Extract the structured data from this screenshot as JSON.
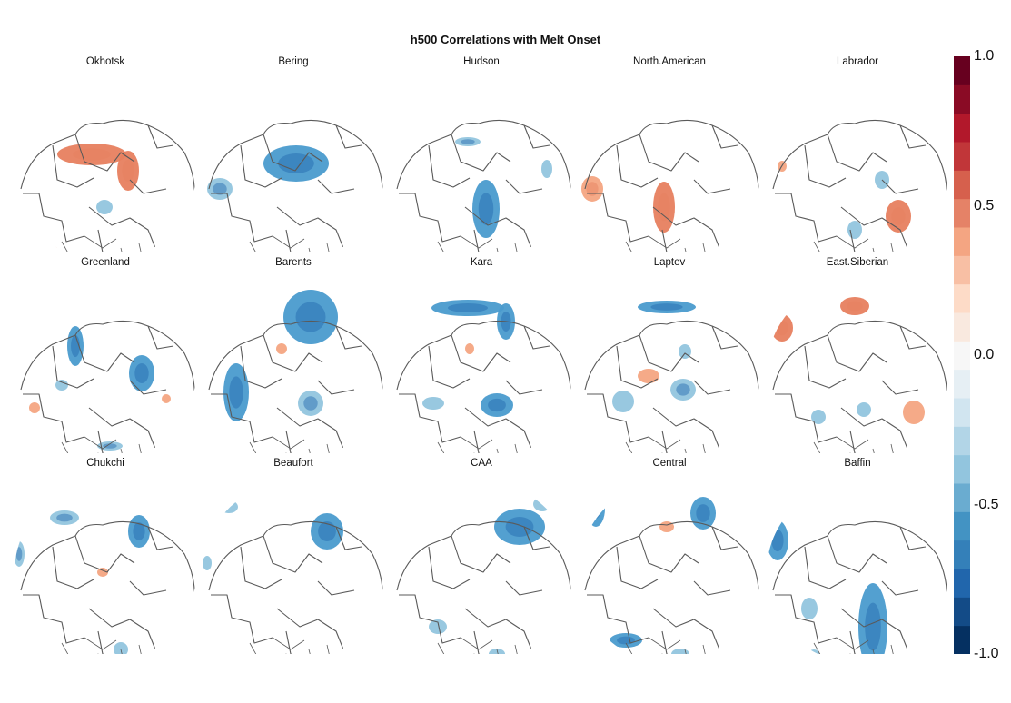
{
  "title": "h500 Correlations with Melt Onset",
  "colors": {
    "negative_strong": "#2166ac",
    "negative_mid": "#4a9bce",
    "negative_light": "#92c5de",
    "positive_light": "#f4a582",
    "positive_mid": "#e7805f",
    "coastline": "#5a5a5a"
  },
  "panels": [
    {
      "label": "Okhotsk",
      "patches": [
        [
          "pos",
          88,
          92,
          38,
          12
        ],
        [
          "pos",
          128,
          110,
          12,
          22
        ],
        [
          "neg",
          102,
          150,
          9,
          8
        ],
        [
          "pos",
          45,
          200,
          7,
          7
        ],
        [
          "neg",
          80,
          250,
          8,
          4
        ]
      ]
    },
    {
      "label": "Bering",
      "patches": [
        [
          "neg",
          106,
          102,
          36,
          20
        ],
        [
          "neg",
          22,
          130,
          14,
          12
        ],
        [
          "neg",
          112,
          250,
          10,
          5
        ]
      ]
    },
    {
      "label": "Hudson",
      "patches": [
        [
          "neg",
          88,
          78,
          14,
          5
        ],
        [
          "neg",
          108,
          152,
          15,
          32
        ],
        [
          "neg",
          175,
          108,
          6,
          10
        ],
        [
          "neg",
          35,
          255,
          7,
          4
        ]
      ]
    },
    {
      "label": "North.American",
      "patches": [
        [
          "pos",
          18,
          130,
          12,
          14
        ],
        [
          "pos",
          97,
          150,
          12,
          28
        ],
        [
          "pos",
          40,
          205,
          12,
          13
        ],
        [
          "neg",
          120,
          230,
          8,
          6
        ]
      ]
    },
    {
      "label": "Labrador",
      "patches": [
        [
          "pos",
          148,
          160,
          14,
          18
        ],
        [
          "pos",
          80,
          213,
          16,
          9
        ],
        [
          "neg",
          130,
          120,
          8,
          10
        ],
        [
          "neg",
          100,
          175,
          8,
          10
        ],
        [
          "pos",
          20,
          105,
          5,
          6
        ]
      ]
    },
    {
      "label": "Greenland",
      "patches": [
        [
          "neg",
          70,
          82,
          9,
          22
        ],
        [
          "neg",
          143,
          112,
          14,
          20
        ],
        [
          "neg",
          55,
          125,
          7,
          6
        ],
        [
          "pos",
          25,
          150,
          6,
          6
        ],
        [
          "neg",
          108,
          192,
          14,
          5
        ],
        [
          "pos",
          170,
          140,
          5,
          5
        ]
      ]
    },
    {
      "label": "Barents",
      "patches": [
        [
          "neg",
          122,
          50,
          30,
          30
        ],
        [
          "neg",
          40,
          133,
          14,
          32
        ],
        [
          "neg",
          122,
          145,
          14,
          14
        ],
        [
          "pos",
          90,
          85,
          6,
          6
        ],
        [
          "neg",
          20,
          40,
          8,
          8
        ]
      ]
    },
    {
      "label": "Kara",
      "patches": [
        [
          "neg",
          88,
          40,
          40,
          9
        ],
        [
          "neg",
          130,
          55,
          10,
          20
        ],
        [
          "neg",
          120,
          147,
          18,
          13
        ],
        [
          "neg",
          50,
          145,
          12,
          7
        ],
        [
          "pos",
          90,
          85,
          5,
          6
        ]
      ]
    },
    {
      "label": "Laptev",
      "patches": [
        [
          "neg",
          100,
          39,
          32,
          7
        ],
        [
          "pos",
          80,
          115,
          12,
          8
        ],
        [
          "neg",
          52,
          143,
          12,
          12
        ],
        [
          "neg",
          118,
          130,
          14,
          12
        ],
        [
          "neg",
          120,
          88,
          7,
          8
        ]
      ]
    },
    {
      "label": "East.Siberian",
      "patches": [
        [
          "pos",
          20,
          62,
          12,
          15
        ],
        [
          "pos",
          100,
          38,
          16,
          10
        ],
        [
          "pos",
          165,
          155,
          12,
          13
        ],
        [
          "neg",
          60,
          160,
          8,
          8
        ],
        [
          "neg",
          110,
          152,
          8,
          8
        ]
      ]
    },
    {
      "label": "Chukchi",
      "patches": [
        [
          "neg",
          58,
          50,
          16,
          8
        ],
        [
          "neg",
          140,
          65,
          12,
          18
        ],
        [
          "neg",
          8,
          90,
          6,
          14
        ],
        [
          "pos",
          100,
          110,
          6,
          5
        ],
        [
          "neg",
          120,
          195,
          8,
          8
        ]
      ]
    },
    {
      "label": "Beaufort",
      "patches": [
        [
          "neg",
          140,
          65,
          18,
          20
        ],
        [
          "neg",
          32,
          38,
          10,
          7
        ],
        [
          "neg",
          8,
          100,
          5,
          8
        ]
      ]
    },
    {
      "label": "CAA",
      "patches": [
        [
          "neg",
          145,
          60,
          28,
          20
        ],
        [
          "neg",
          170,
          35,
          10,
          8
        ],
        [
          "neg",
          55,
          170,
          10,
          8
        ],
        [
          "neg",
          120,
          200,
          9,
          6
        ],
        [
          "neg",
          30,
          30,
          6,
          5
        ]
      ]
    },
    {
      "label": "Central",
      "patches": [
        [
          "neg",
          22,
          40,
          10,
          20
        ],
        [
          "neg",
          140,
          45,
          14,
          18
        ],
        [
          "pos",
          100,
          60,
          8,
          6
        ],
        [
          "neg",
          55,
          185,
          18,
          8
        ],
        [
          "neg",
          115,
          200,
          10,
          6
        ]
      ]
    },
    {
      "label": "Baffin",
      "patches": [
        [
          "neg",
          15,
          75,
          12,
          22
        ],
        [
          "neg",
          120,
          170,
          16,
          48
        ],
        [
          "neg",
          50,
          150,
          9,
          12
        ],
        [
          "neg",
          55,
          200,
          6,
          5
        ]
      ]
    }
  ],
  "colorbar": {
    "min": -1.0,
    "max": 1.0,
    "ticks": [
      "1.0",
      "0.5",
      "0.0",
      "-0.5",
      "-1.0"
    ],
    "colors": [
      "#053061",
      "#134b87",
      "#2166ac",
      "#3480b9",
      "#4393c3",
      "#6aacd0",
      "#92c5de",
      "#b2d5e7",
      "#d1e5f0",
      "#e6eff4",
      "#f7f7f7",
      "#f9e9df",
      "#fddbc7",
      "#f8bfa4",
      "#f4a582",
      "#e58267",
      "#d6604d",
      "#c13639",
      "#b2182b",
      "#8a0b25",
      "#67001f"
    ]
  }
}
